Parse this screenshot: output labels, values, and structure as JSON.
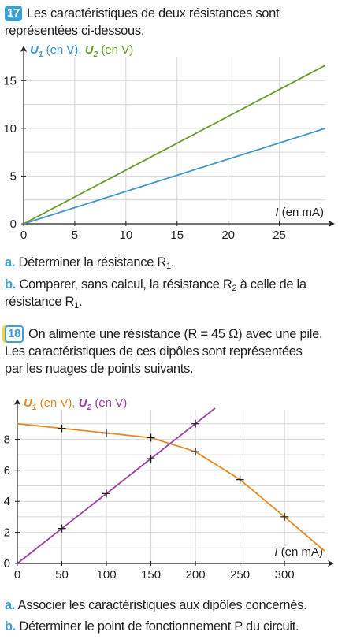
{
  "ex17": {
    "number": "17",
    "intro": "Les caractéristiques de deux résistances sont représentées ci-dessous.",
    "q_a_marker": "a.",
    "q_a": "Déterminer la résistance R",
    "q_a_sub": "1",
    "q_a_end": ".",
    "q_b_marker": "b.",
    "q_b_1": "Comparer, sans calcul, la résistance R",
    "q_b_sub1": "2",
    "q_b_2": " à celle de la résistance R",
    "q_b_sub2": "1",
    "q_b_end": ".",
    "chart_data": {
      "type": "line",
      "ylabel_u1": "U",
      "ylabel_u1_sub": "1",
      "ylabel_u1_unit": " (en V), ",
      "ylabel_u2": "U",
      "ylabel_u2_sub": "2",
      "ylabel_u2_unit": " (en V)",
      "xlabel_var": "I",
      "xlabel_unit": " (en mA)",
      "xlim": [
        0,
        29.5
      ],
      "ylim": [
        0,
        17.5
      ],
      "xticks": [
        "0",
        "5",
        "10",
        "15",
        "20",
        "25"
      ],
      "yticks": [
        "0",
        "5",
        "10",
        "15"
      ],
      "series": [
        {
          "color": "#3f97c9",
          "x": [
            0,
            29.5
          ],
          "y": [
            0,
            10
          ]
        },
        {
          "color": "#6a9a2c",
          "x": [
            0,
            29.5
          ],
          "y": [
            0,
            16.6
          ]
        }
      ]
    }
  },
  "ex18": {
    "number": "18",
    "intro_1": "On alimente une résistance (R = 45 Ω) avec une pile.",
    "intro_2": "Les caractéristiques de ces dipôles sont représentées",
    "intro_3": "par les nuages de points suivants.",
    "q_a_marker": "a.",
    "q_a": "Associer les caractéristiques aux dipôles concernés.",
    "q_b_marker": "b.",
    "q_b": "Déterminer le point de fonctionnement P du circuit.",
    "chart_data": {
      "type": "scatter",
      "ylabel_u1": "U",
      "ylabel_u1_sub": "1",
      "ylabel_u1_unit": " (en V), ",
      "ylabel_u2": "U",
      "ylabel_u2_sub": "2",
      "ylabel_u2_unit": " (en V)",
      "xlabel_var": "I",
      "xlabel_unit": " (en mA)",
      "xlim": [
        0,
        345
      ],
      "ylim": [
        0,
        9.9
      ],
      "xticks": [
        "0",
        "50",
        "100",
        "150",
        "200",
        "250",
        "300"
      ],
      "yticks": [
        "0",
        "2",
        "4",
        "6",
        "8"
      ],
      "series": [
        {
          "color": "#e58a1f",
          "x": [
            0,
            50,
            100,
            150,
            200,
            250,
            300,
            345
          ],
          "y": [
            9,
            8.7,
            8.4,
            8.1,
            7.2,
            5.4,
            3.0,
            0.8
          ],
          "marked": [
            50,
            100,
            150,
            200,
            250,
            300
          ]
        },
        {
          "color": "#9b3fa0",
          "x": [
            0,
            50,
            100,
            150,
            200,
            222
          ],
          "y": [
            0,
            2.25,
            4.5,
            6.75,
            9.0,
            10.0
          ],
          "marked": [
            50,
            100,
            150,
            200
          ]
        }
      ]
    }
  }
}
